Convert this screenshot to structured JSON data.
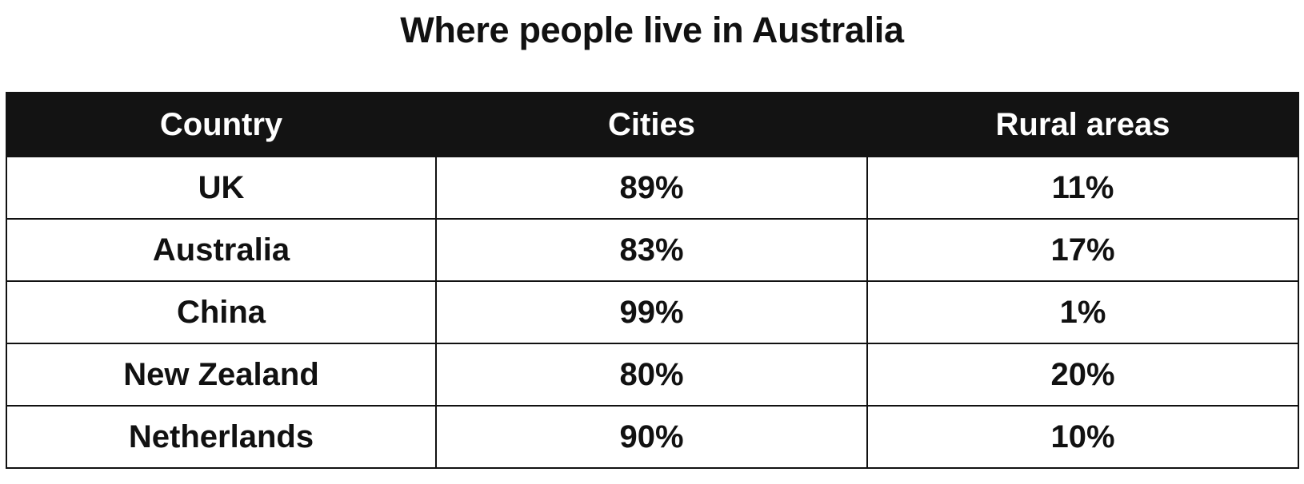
{
  "chart_data": {
    "type": "table",
    "title": "Where people live in Australia",
    "columns": [
      "Country",
      "Cities",
      "Rural areas"
    ],
    "rows": [
      [
        "UK",
        "89%",
        "11%"
      ],
      [
        "Australia",
        "83%",
        "17%"
      ],
      [
        "China",
        "99%",
        "1%"
      ],
      [
        "New Zealand",
        "80%",
        "20%"
      ],
      [
        "Netherlands",
        "90%",
        "10%"
      ]
    ]
  },
  "colors": {
    "header_background": "#131313",
    "header_text": "#ffffff",
    "border": "#111111",
    "body_background": "#ffffff"
  }
}
